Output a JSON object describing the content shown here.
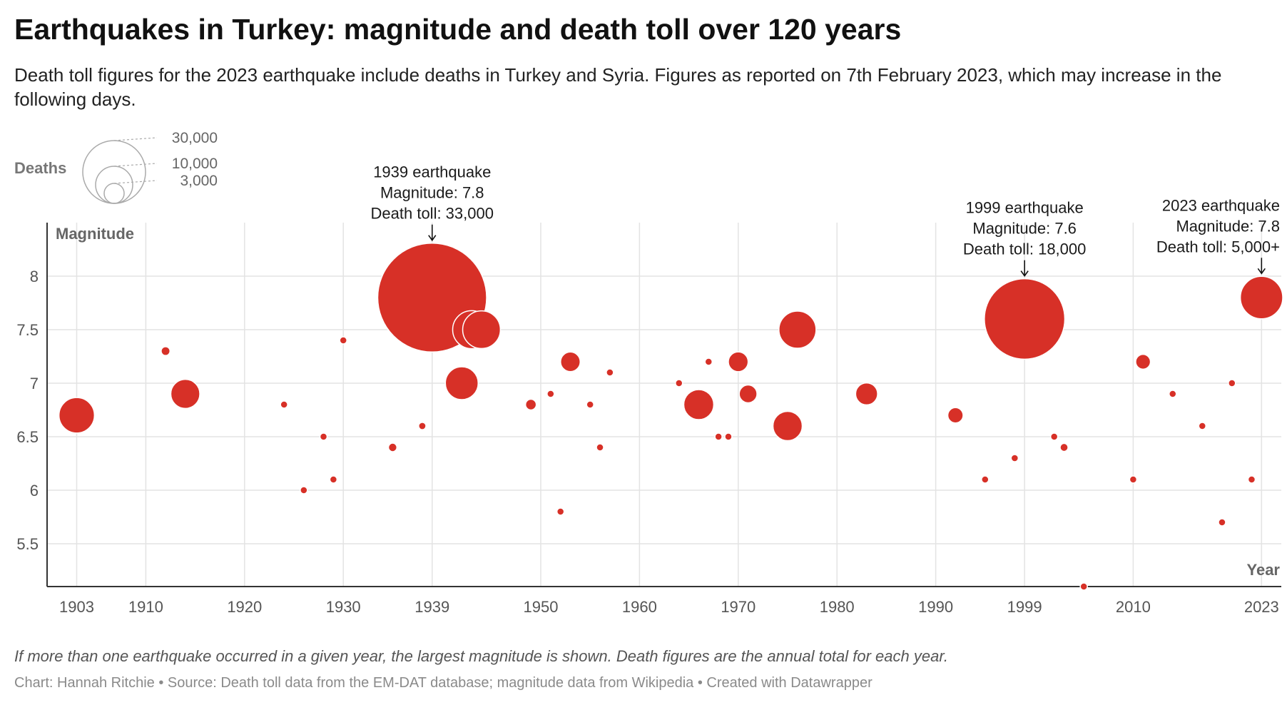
{
  "title": "Earthquakes in Turkey: magnitude and death toll over 120 years",
  "subtitle": "Death toll figures for the 2023 earthquake include deaths in Turkey and Syria. Figures as reported on 7th February 2023, which may increase in the following days.",
  "footer": {
    "note": "If more than one earthquake occurred in a given year, the largest magnitude is shown. Death figures are the annual total for each year.",
    "credits": "Chart: Hannah Ritchie • Source: Death toll data from the EM-DAT database; magnitude data from Wikipedia • Created with Datawrapper"
  },
  "chart_data": {
    "type": "scatter",
    "title": "Earthquakes in Turkey: magnitude and death toll over 120 years",
    "xlabel": "Year",
    "ylabel": "Magnitude",
    "xlim": [
      1900,
      2025
    ],
    "ylim": [
      5.1,
      8.5
    ],
    "x_ticks": [
      1903,
      1910,
      1920,
      1930,
      1939,
      1950,
      1960,
      1970,
      1980,
      1990,
      1999,
      2010,
      2023
    ],
    "y_ticks": [
      5.5,
      6,
      6.5,
      7,
      7.5,
      8
    ],
    "grid": true,
    "color": "#d73027",
    "size_legend": {
      "title": "Deaths",
      "values": [
        30000,
        10000,
        3000
      ],
      "labels": [
        "30,000",
        "10,000",
        "3,000"
      ],
      "placement": "top-left"
    },
    "points": [
      {
        "x": 1903,
        "y": 6.7,
        "deaths": 3500
      },
      {
        "x": 1912,
        "y": 7.3,
        "deaths": 216
      },
      {
        "x": 1914,
        "y": 6.9,
        "deaths": 2344
      },
      {
        "x": 1924,
        "y": 6.8,
        "deaths": 60
      },
      {
        "x": 1926,
        "y": 6.0,
        "deaths": 50
      },
      {
        "x": 1928,
        "y": 6.5,
        "deaths": 50
      },
      {
        "x": 1929,
        "y": 6.1,
        "deaths": 64
      },
      {
        "x": 1930,
        "y": 7.4,
        "deaths": 60
      },
      {
        "x": 1935,
        "y": 6.4,
        "deaths": 200
      },
      {
        "x": 1938,
        "y": 6.6,
        "deaths": 149
      },
      {
        "x": 1939,
        "y": 7.8,
        "deaths": 33000
      },
      {
        "x": 1942,
        "y": 7.0,
        "deaths": 3000
      },
      {
        "x": 1943,
        "y": 7.5,
        "deaths": 4020
      },
      {
        "x": 1944,
        "y": 7.5,
        "deaths": 3959
      },
      {
        "x": 1949,
        "y": 6.8,
        "deaths": 320
      },
      {
        "x": 1951,
        "y": 6.9,
        "deaths": 50
      },
      {
        "x": 1952,
        "y": 5.8,
        "deaths": 100
      },
      {
        "x": 1953,
        "y": 7.2,
        "deaths": 1070
      },
      {
        "x": 1955,
        "y": 6.8,
        "deaths": 40
      },
      {
        "x": 1956,
        "y": 6.4,
        "deaths": 50
      },
      {
        "x": 1957,
        "y": 7.1,
        "deaths": 50
      },
      {
        "x": 1964,
        "y": 7.0,
        "deaths": 50
      },
      {
        "x": 1966,
        "y": 6.8,
        "deaths": 2500
      },
      {
        "x": 1967,
        "y": 7.2,
        "deaths": 89
      },
      {
        "x": 1968,
        "y": 6.5,
        "deaths": 80
      },
      {
        "x": 1969,
        "y": 6.5,
        "deaths": 60
      },
      {
        "x": 1970,
        "y": 7.2,
        "deaths": 1086
      },
      {
        "x": 1971,
        "y": 6.9,
        "deaths": 878
      },
      {
        "x": 1975,
        "y": 6.6,
        "deaths": 2385
      },
      {
        "x": 1976,
        "y": 7.5,
        "deaths": 3840
      },
      {
        "x": 1983,
        "y": 6.9,
        "deaths": 1342
      },
      {
        "x": 1992,
        "y": 6.7,
        "deaths": 653
      },
      {
        "x": 1995,
        "y": 6.1,
        "deaths": 94
      },
      {
        "x": 1998,
        "y": 6.3,
        "deaths": 145
      },
      {
        "x": 1999,
        "y": 7.6,
        "deaths": 18000
      },
      {
        "x": 2002,
        "y": 6.5,
        "deaths": 44
      },
      {
        "x": 2003,
        "y": 6.4,
        "deaths": 177
      },
      {
        "x": 2005,
        "y": 5.1,
        "deaths": 30
      },
      {
        "x": 2010,
        "y": 6.1,
        "deaths": 51
      },
      {
        "x": 2011,
        "y": 7.2,
        "deaths": 604
      },
      {
        "x": 2014,
        "y": 6.9,
        "deaths": 30
      },
      {
        "x": 2017,
        "y": 6.6,
        "deaths": 30
      },
      {
        "x": 2019,
        "y": 5.7,
        "deaths": 40
      },
      {
        "x": 2020,
        "y": 7.0,
        "deaths": 117
      },
      {
        "x": 2022,
        "y": 6.1,
        "deaths": 50
      },
      {
        "x": 2023,
        "y": 7.8,
        "deaths": 5000
      }
    ],
    "annotations": [
      {
        "x": 1939,
        "y": 7.8,
        "lines": [
          "1939 earthquake",
          "Magnitude: 7.8",
          "Death toll: 33,000"
        ],
        "align": "middle"
      },
      {
        "x": 1999,
        "y": 7.6,
        "lines": [
          "1999 earthquake",
          "Magnitude: 7.6",
          "Death toll: 18,000"
        ],
        "align": "middle"
      },
      {
        "x": 2023,
        "y": 7.8,
        "lines": [
          "2023 earthquake",
          "Magnitude: 7.8",
          "Death toll: 5,000+"
        ],
        "align": "end"
      }
    ]
  }
}
